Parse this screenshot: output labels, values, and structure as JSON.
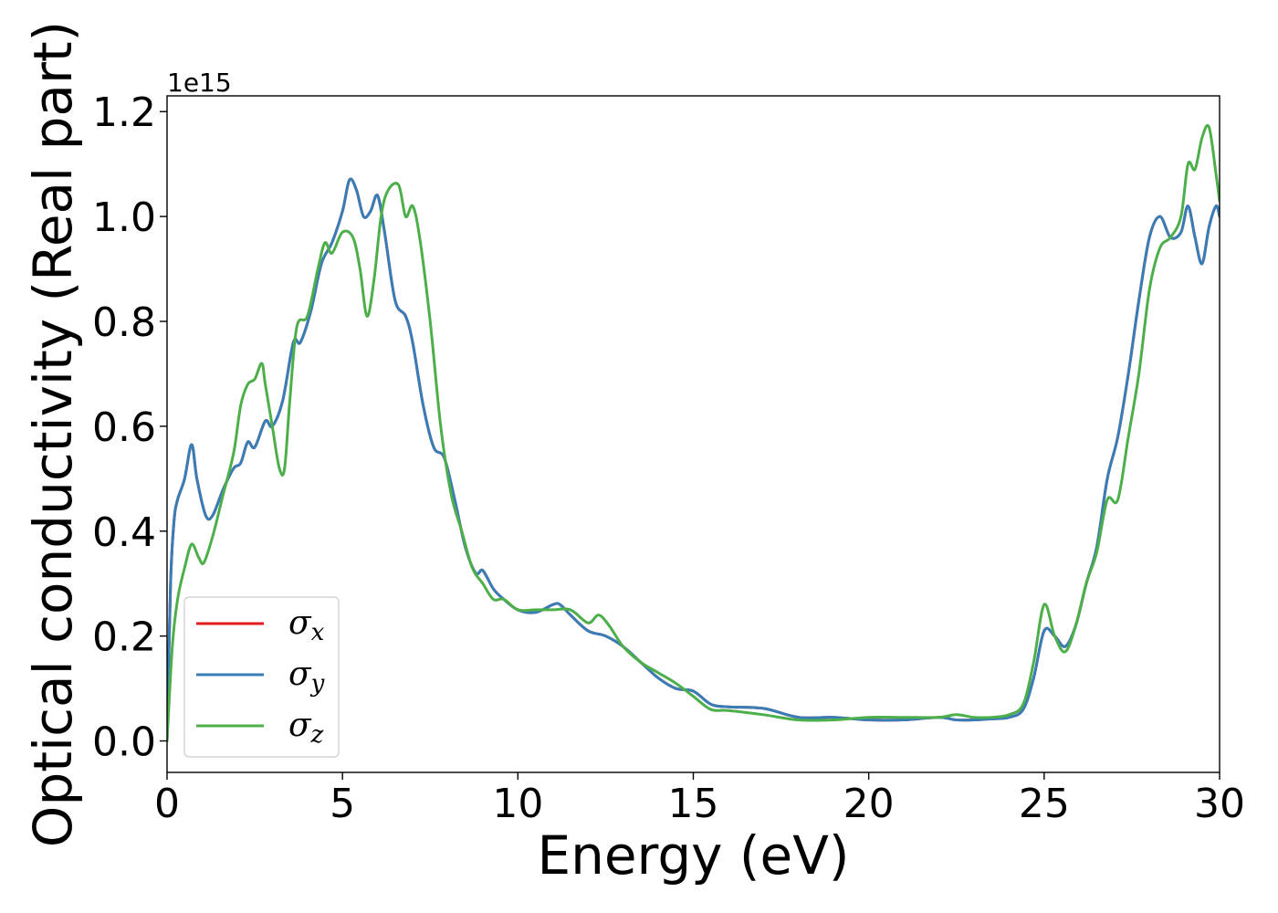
{
  "chart_data": {
    "type": "line",
    "xlabel": "Energy (eV)",
    "ylabel": "Optical conductivity (Real part)",
    "y_offset_text": "1e15",
    "y_multiplier": 1000000000000000.0,
    "xlim": [
      0,
      30
    ],
    "ylim": [
      -0.06,
      1.23
    ],
    "xticks": [
      0,
      5,
      10,
      15,
      20,
      25,
      30
    ],
    "xtick_labels": [
      "0",
      "5",
      "10",
      "15",
      "20",
      "25",
      "30"
    ],
    "yticks": [
      0.0,
      0.2,
      0.4,
      0.6,
      0.8,
      1.0,
      1.2
    ],
    "ytick_labels": [
      "0.0",
      "0.2",
      "0.4",
      "0.6",
      "0.8",
      "1.0",
      "1.2"
    ],
    "grid": false,
    "legend_position": "lower-left",
    "series": [
      {
        "name": "σx",
        "symbol": "σ",
        "subscript": "x",
        "color": "#e41a1c",
        "x": [
          0,
          0.1,
          0.2,
          0.3,
          0.5,
          0.7,
          0.85,
          1.1,
          1.3,
          1.6,
          1.9,
          2.1,
          2.3,
          2.5,
          2.8,
          3.0,
          3.3,
          3.6,
          3.8,
          4.1,
          4.4,
          4.7,
          5.0,
          5.2,
          5.4,
          5.6,
          5.8,
          6.0,
          6.2,
          6.5,
          6.8,
          7.0,
          7.3,
          7.6,
          7.9,
          8.2,
          8.5,
          8.8,
          9.0,
          9.3,
          9.6,
          10.0,
          10.5,
          11.0,
          11.2,
          11.5,
          12.0,
          12.5,
          13.0,
          13.5,
          14.0,
          14.5,
          15.0,
          15.5,
          16.0,
          17.0,
          18.0,
          19.0,
          20.0,
          21.0,
          22.0,
          22.5,
          23.0,
          23.5,
          24.0,
          24.4,
          24.7,
          25.0,
          25.3,
          25.6,
          25.9,
          26.2,
          26.5,
          26.8,
          27.1,
          27.4,
          27.7,
          28.0,
          28.3,
          28.6,
          28.9,
          29.1,
          29.3,
          29.5,
          29.7,
          29.9,
          30.0
        ],
        "y": [
          0.0,
          0.3,
          0.42,
          0.46,
          0.5,
          0.565,
          0.5,
          0.43,
          0.43,
          0.48,
          0.52,
          0.53,
          0.57,
          0.56,
          0.61,
          0.6,
          0.65,
          0.76,
          0.76,
          0.82,
          0.91,
          0.95,
          1.01,
          1.07,
          1.05,
          1.0,
          1.01,
          1.04,
          0.97,
          0.84,
          0.81,
          0.76,
          0.64,
          0.56,
          0.54,
          0.46,
          0.37,
          0.32,
          0.325,
          0.29,
          0.27,
          0.25,
          0.245,
          0.26,
          0.26,
          0.24,
          0.21,
          0.2,
          0.18,
          0.15,
          0.12,
          0.1,
          0.095,
          0.07,
          0.065,
          0.062,
          0.045,
          0.045,
          0.04,
          0.04,
          0.045,
          0.04,
          0.04,
          0.042,
          0.045,
          0.06,
          0.12,
          0.21,
          0.2,
          0.18,
          0.22,
          0.3,
          0.37,
          0.5,
          0.58,
          0.7,
          0.84,
          0.96,
          1.0,
          0.96,
          0.97,
          1.02,
          0.96,
          0.91,
          0.98,
          1.02,
          1.0
        ]
      },
      {
        "name": "σy",
        "symbol": "σ",
        "subscript": "y",
        "color": "#377eb8",
        "x": [
          0,
          0.1,
          0.2,
          0.3,
          0.5,
          0.7,
          0.85,
          1.1,
          1.3,
          1.6,
          1.9,
          2.1,
          2.3,
          2.5,
          2.8,
          3.0,
          3.3,
          3.6,
          3.8,
          4.1,
          4.4,
          4.7,
          5.0,
          5.2,
          5.4,
          5.6,
          5.8,
          6.0,
          6.2,
          6.5,
          6.8,
          7.0,
          7.3,
          7.6,
          7.9,
          8.2,
          8.5,
          8.8,
          9.0,
          9.3,
          9.6,
          10.0,
          10.5,
          11.0,
          11.2,
          11.5,
          12.0,
          12.5,
          13.0,
          13.5,
          14.0,
          14.5,
          15.0,
          15.5,
          16.0,
          17.0,
          18.0,
          19.0,
          20.0,
          21.0,
          22.0,
          22.5,
          23.0,
          23.5,
          24.0,
          24.4,
          24.7,
          25.0,
          25.3,
          25.6,
          25.9,
          26.2,
          26.5,
          26.8,
          27.1,
          27.4,
          27.7,
          28.0,
          28.3,
          28.6,
          28.9,
          29.1,
          29.3,
          29.5,
          29.7,
          29.9,
          30.0
        ],
        "y": [
          0.0,
          0.3,
          0.42,
          0.46,
          0.5,
          0.565,
          0.5,
          0.43,
          0.43,
          0.48,
          0.52,
          0.53,
          0.57,
          0.56,
          0.61,
          0.6,
          0.65,
          0.76,
          0.76,
          0.82,
          0.91,
          0.95,
          1.01,
          1.07,
          1.05,
          1.0,
          1.01,
          1.04,
          0.97,
          0.84,
          0.81,
          0.76,
          0.64,
          0.56,
          0.54,
          0.46,
          0.37,
          0.32,
          0.325,
          0.29,
          0.27,
          0.25,
          0.245,
          0.26,
          0.26,
          0.24,
          0.21,
          0.2,
          0.18,
          0.15,
          0.12,
          0.1,
          0.095,
          0.07,
          0.065,
          0.062,
          0.045,
          0.045,
          0.04,
          0.04,
          0.045,
          0.04,
          0.04,
          0.042,
          0.045,
          0.06,
          0.12,
          0.21,
          0.2,
          0.18,
          0.22,
          0.3,
          0.37,
          0.5,
          0.58,
          0.7,
          0.84,
          0.96,
          1.0,
          0.96,
          0.97,
          1.02,
          0.96,
          0.91,
          0.98,
          1.02,
          1.0
        ]
      },
      {
        "name": "σz",
        "symbol": "σ",
        "subscript": "z",
        "color": "#4daf4a",
        "x": [
          0,
          0.15,
          0.3,
          0.5,
          0.7,
          0.9,
          1.05,
          1.3,
          1.6,
          1.9,
          2.1,
          2.3,
          2.5,
          2.7,
          2.8,
          3.0,
          3.2,
          3.35,
          3.5,
          3.7,
          4.0,
          4.3,
          4.5,
          4.7,
          5.0,
          5.3,
          5.5,
          5.7,
          5.9,
          6.1,
          6.3,
          6.6,
          6.8,
          7.0,
          7.2,
          7.5,
          7.8,
          8.1,
          8.4,
          8.7,
          9.0,
          9.3,
          9.6,
          10.0,
          10.5,
          11.0,
          11.5,
          12.0,
          12.3,
          12.6,
          13.0,
          13.5,
          14.0,
          14.5,
          15.0,
          15.5,
          16.0,
          17.0,
          18.0,
          19.0,
          20.0,
          21.0,
          22.0,
          22.5,
          23.0,
          23.5,
          24.0,
          24.4,
          24.7,
          25.0,
          25.3,
          25.6,
          25.9,
          26.2,
          26.5,
          26.8,
          27.1,
          27.4,
          27.7,
          28.0,
          28.3,
          28.6,
          28.9,
          29.1,
          29.3,
          29.5,
          29.7,
          29.9,
          30.0
        ],
        "y": [
          0.0,
          0.18,
          0.27,
          0.33,
          0.375,
          0.35,
          0.34,
          0.39,
          0.47,
          0.55,
          0.64,
          0.68,
          0.69,
          0.72,
          0.68,
          0.6,
          0.52,
          0.52,
          0.65,
          0.79,
          0.81,
          0.9,
          0.95,
          0.93,
          0.97,
          0.96,
          0.9,
          0.81,
          0.88,
          1.0,
          1.05,
          1.06,
          1.0,
          1.02,
          0.96,
          0.8,
          0.6,
          0.47,
          0.4,
          0.33,
          0.3,
          0.27,
          0.27,
          0.25,
          0.25,
          0.25,
          0.25,
          0.225,
          0.24,
          0.22,
          0.18,
          0.15,
          0.13,
          0.11,
          0.085,
          0.06,
          0.058,
          0.05,
          0.04,
          0.04,
          0.045,
          0.045,
          0.045,
          0.05,
          0.045,
          0.045,
          0.05,
          0.07,
          0.15,
          0.26,
          0.2,
          0.17,
          0.22,
          0.3,
          0.36,
          0.46,
          0.46,
          0.58,
          0.7,
          0.86,
          0.94,
          0.96,
          1.0,
          1.1,
          1.09,
          1.15,
          1.17,
          1.08,
          1.03
        ]
      }
    ]
  }
}
